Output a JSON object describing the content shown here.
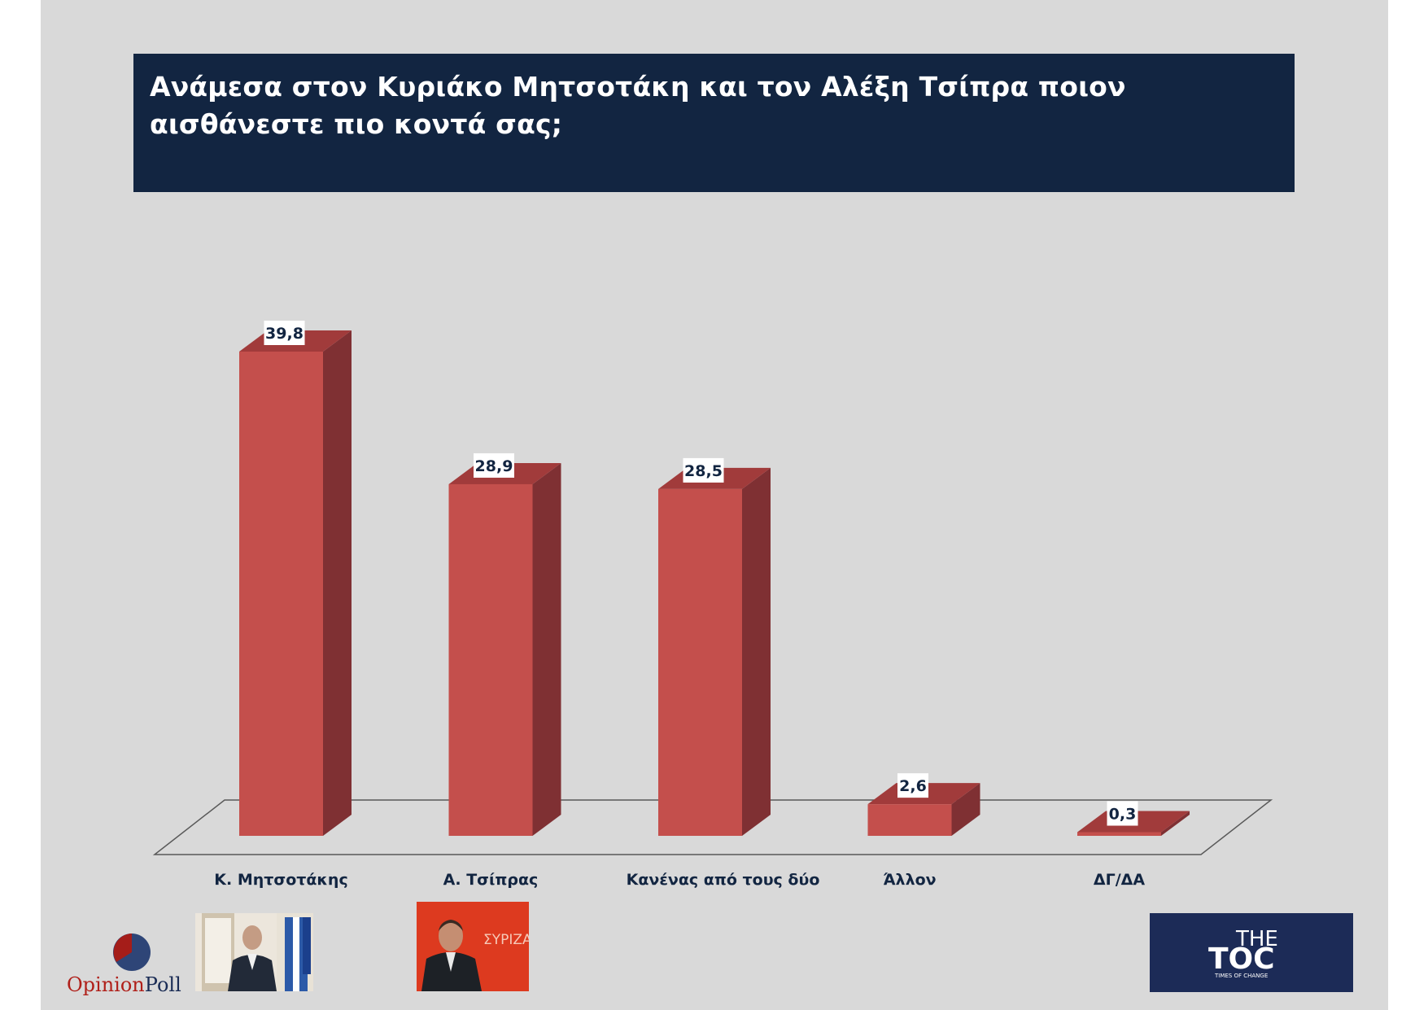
{
  "title": "Ανάμεσα στον Κυριάκο Μητσοτάκη και τον Αλέξη Τσίπρα ποιον αισθάνεστε πιο κοντά σας;",
  "chart_data": {
    "type": "bar",
    "categories": [
      "Κ. Μητσοτάκης",
      "Α. Τσίπρας",
      "Κανένας από τους δύο",
      "Άλλον",
      "ΔΓ/ΔΑ"
    ],
    "values": [
      39.8,
      28.9,
      28.5,
      2.6,
      0.3
    ],
    "value_labels": [
      "39,8",
      "28,9",
      "28,5",
      "2,6",
      "0,3"
    ],
    "ylim": [
      0,
      40
    ],
    "grid": false,
    "style": "3d-column",
    "colors": {
      "bar_front": "#c44f4c",
      "bar_side": "#7f3033",
      "bar_top": "#a13b3b",
      "label_text": "#122541"
    }
  },
  "logos": {
    "opinion_poll": {
      "prefix": "Opinion",
      "suffix": "Poll"
    },
    "the_toc": {
      "line1": "THE",
      "line2": "TOC",
      "tagline": "TIMES OF CHANGE"
    },
    "syriza_sign": "ΣΥΡΙΖΑ"
  },
  "colors": {
    "slide_bg": "#d9d9d9",
    "title_bg": "#122541",
    "title_text": "#ffffff"
  }
}
